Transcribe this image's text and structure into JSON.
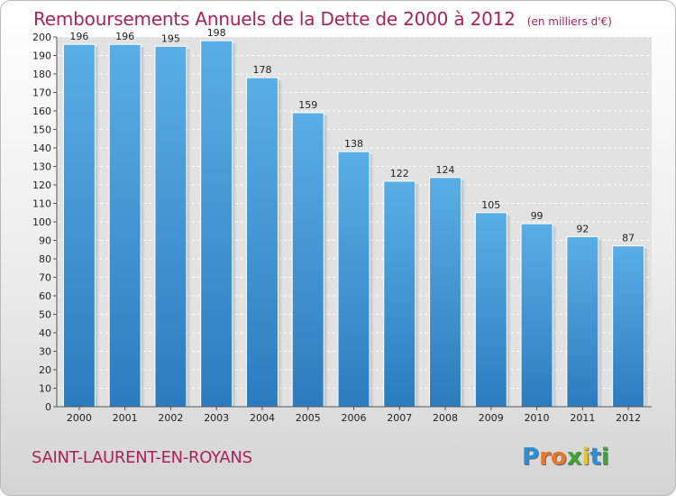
{
  "header": {
    "title": "Remboursements Annuels de la Dette de 2000 à 2012",
    "subtitle": "(en milliers d'€)"
  },
  "footer": {
    "city": "SAINT-LAURENT-EN-ROYANS",
    "logo": {
      "letters": [
        "P",
        "r",
        "o",
        "x",
        "i",
        "t",
        "i"
      ],
      "colors": [
        "#2a8fd6",
        "#e8792c",
        "#e8792c",
        "#3fa535",
        "#e8c32a",
        "#2a8fd6",
        "#3fa535"
      ]
    }
  },
  "chart_data": {
    "type": "bar",
    "title": "Remboursements Annuels de la Dette de 2000 à 2012",
    "subtitle": "(en milliers d'€)",
    "xlabel": "",
    "ylabel": "",
    "categories": [
      "2000",
      "2001",
      "2002",
      "2003",
      "2004",
      "2005",
      "2006",
      "2007",
      "2008",
      "2009",
      "2010",
      "2011",
      "2012"
    ],
    "values": [
      196,
      196,
      195,
      198,
      178,
      159,
      138,
      122,
      124,
      105,
      99,
      92,
      87
    ],
    "ylim": [
      0,
      200
    ],
    "yticks": [
      0,
      10,
      20,
      30,
      40,
      50,
      60,
      70,
      80,
      90,
      100,
      110,
      120,
      130,
      140,
      150,
      160,
      170,
      180,
      190,
      200
    ],
    "grid": true,
    "bar_color_top": "#5aaee6",
    "bar_color_bottom": "#2b7cbf",
    "data_labels": true
  }
}
